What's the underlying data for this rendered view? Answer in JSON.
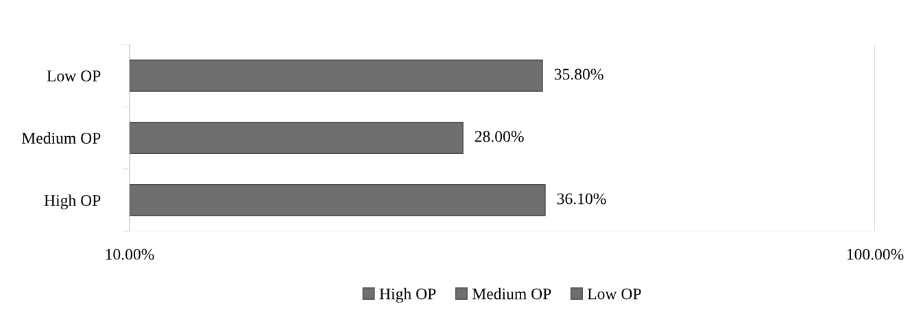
{
  "chart_data": {
    "type": "bar",
    "orientation": "horizontal",
    "log": "x",
    "categories": [
      "Low OP",
      "Medium OP",
      "High OP"
    ],
    "series": [
      {
        "name": "High OP",
        "color": "#6f6f6f",
        "values": [
          null,
          null,
          36.1
        ],
        "value_labels": [
          null,
          null,
          "36.10%"
        ]
      },
      {
        "name": "Medium OP",
        "color": "#6f6f6f",
        "values": [
          null,
          28.0,
          null
        ],
        "value_labels": [
          null,
          "28.00%",
          null
        ]
      },
      {
        "name": "Low OP",
        "color": "#6f6f6f",
        "values": [
          35.8,
          null,
          null
        ],
        "value_labels": [
          "35.80%",
          null,
          null
        ]
      }
    ],
    "xlim": [
      10,
      100
    ],
    "xticks": [
      {
        "value": 10,
        "label": "10.00%"
      },
      {
        "value": 100,
        "label": "100.00%"
      }
    ],
    "ref_lines": [
      {
        "axis": "x",
        "value": 100,
        "color": "#d9d9d9"
      }
    ],
    "legend": "bottom"
  }
}
